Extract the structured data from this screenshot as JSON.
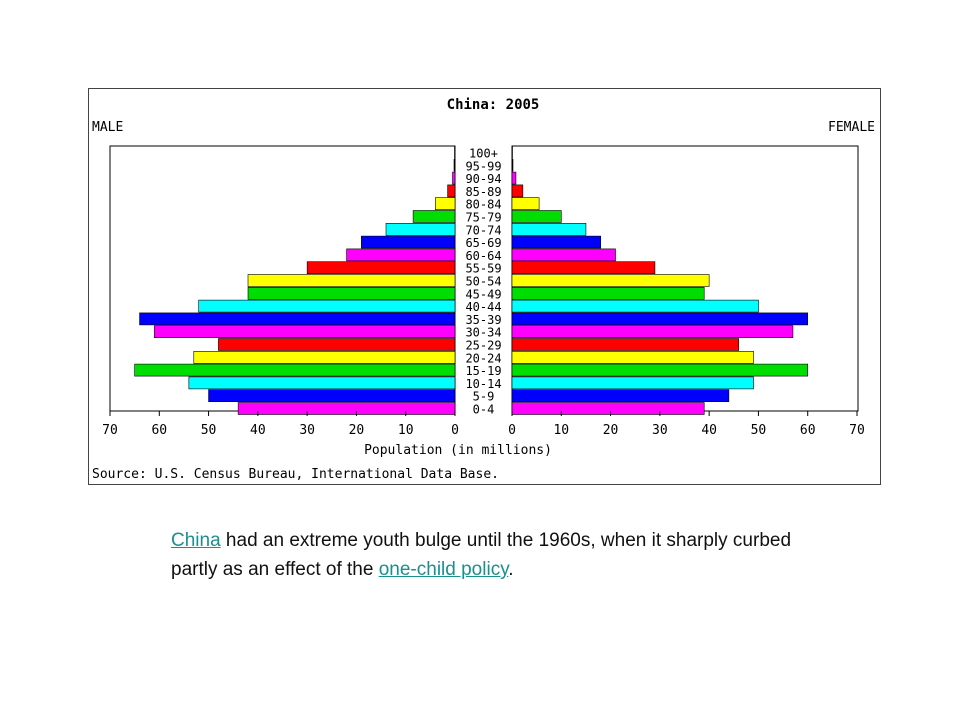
{
  "chart_data": {
    "type": "bar",
    "title": "China: 2005",
    "left_label": "MALE",
    "right_label": "FEMALE",
    "xlabel": "Population (in millions)",
    "source": "Source: U.S. Census Bureau, International Data Base.",
    "xlim": [
      0,
      70
    ],
    "ticks": [
      "70",
      "60",
      "50",
      "40",
      "30",
      "20",
      "10",
      "0"
    ],
    "ticks_right": [
      "0",
      "10",
      "20",
      "30",
      "40",
      "50",
      "60",
      "70"
    ],
    "tick_values": [
      70,
      60,
      50,
      40,
      30,
      20,
      10,
      0
    ],
    "tick_values_right": [
      0,
      10,
      20,
      30,
      40,
      50,
      60,
      70
    ],
    "categories": [
      "100+",
      "95-99",
      "90-94",
      "85-89",
      "80-84",
      "75-79",
      "70-74",
      "65-69",
      "60-64",
      "55-59",
      "50-54",
      "45-49",
      "40-44",
      "35-39",
      "30-34",
      "25-29",
      "20-24",
      "15-19",
      "10-14",
      "5-9",
      "0-4"
    ],
    "colors": [
      "#000000",
      "#000000",
      "#ff00ff",
      "#ff0000",
      "#ffff00",
      "#00dd00",
      "#00ffff",
      "#0000ff",
      "#ff00ff",
      "#ff0000",
      "#ffff00",
      "#00dd00",
      "#00ffff",
      "#0000ff",
      "#ff00ff",
      "#ff0000",
      "#ffff00",
      "#00dd00",
      "#00ffff",
      "#0000ff",
      "#ff00ff"
    ],
    "series": [
      {
        "name": "MALE",
        "values": [
          0.1,
          0.2,
          0.5,
          1.5,
          4,
          8.5,
          14,
          19,
          22,
          30,
          42,
          42,
          52,
          64,
          61,
          48,
          53,
          65,
          54,
          50,
          44
        ]
      },
      {
        "name": "FEMALE",
        "values": [
          0.1,
          0.2,
          0.8,
          2.2,
          5.5,
          10,
          15,
          18,
          21,
          29,
          40,
          39,
          50,
          60,
          57,
          46,
          49,
          60,
          49,
          44,
          39
        ]
      }
    ]
  },
  "caption": {
    "link1": "China",
    "text1": " had an extreme youth bulge until the 1960s, when it sharply curbed partly as an effect of the ",
    "link2": "one-child policy",
    "text2": "."
  }
}
